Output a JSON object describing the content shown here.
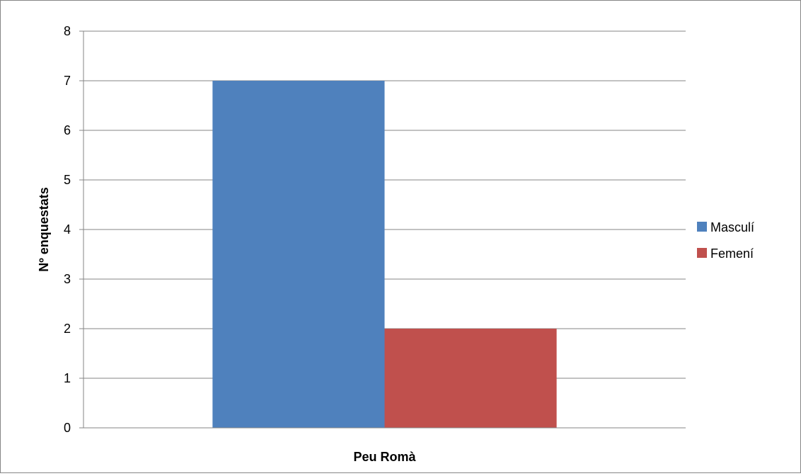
{
  "chart_data": {
    "type": "bar",
    "categories": [
      "Peu Romà"
    ],
    "series": [
      {
        "name": "Masculí",
        "values": [
          7
        ],
        "color": "#4f81bd"
      },
      {
        "name": "Femení",
        "values": [
          2
        ],
        "color": "#c0504d"
      }
    ],
    "title": "",
    "xlabel": "Peu Romà",
    "ylabel": "Nº enquestats",
    "ylim": [
      0,
      8
    ],
    "yticks": [
      0,
      1,
      2,
      3,
      4,
      5,
      6,
      7,
      8
    ],
    "grid": true,
    "legend_position": "right"
  },
  "colors": {
    "gridline": "#868686",
    "text": "#000000"
  }
}
